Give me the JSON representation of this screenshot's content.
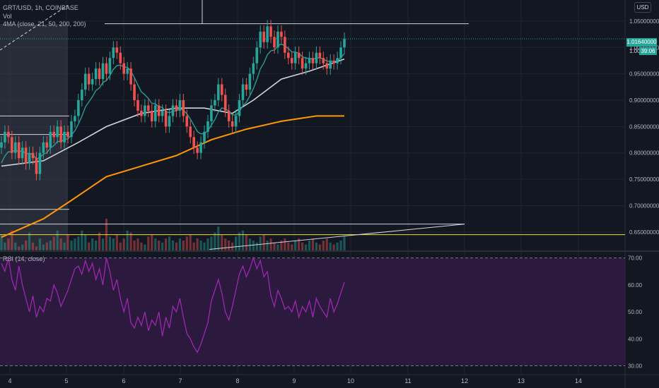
{
  "header": {
    "symbol_line": "GRT/USD, 1h, COINBASE",
    "vol_label": "Vol",
    "ma_label": "4MA (close, 21, 50, 200, 200)",
    "currency": "USD"
  },
  "rsi_panel": {
    "label": "RSI (14, close)",
    "upper_band": 70,
    "lower_band": 30
  },
  "last_price": {
    "price": "1.01640000",
    "countdown": "39:06",
    "partial_label": "1.00"
  },
  "colors": {
    "background": "#131722",
    "grid": "#1f2430",
    "up": "#26a69a",
    "down": "#ef5350",
    "ma21": "#26a69a",
    "ma50": "#d1d4dc",
    "ma200": "#ff9800",
    "rsi": "#9c27b0",
    "rsi_fill": "#2b1a3d",
    "yellow_line": "#fdd835",
    "trend_line": "#d1d4dc",
    "price_tag": "#26a69a"
  },
  "chart_data": [
    {
      "type": "candlestick",
      "title": "GRT/USD, 1h, COINBASE",
      "x_ticks": [
        "4",
        "5",
        "6",
        "7",
        "8",
        "9",
        "10",
        "11",
        "12",
        "13",
        "14"
      ],
      "y_ticks": [
        "1.05000000",
        "1.00000000",
        "0.95000000",
        "0.90000000",
        "0.85000000",
        "0.80000000",
        "0.75000000",
        "0.70000000",
        "0.65000000"
      ],
      "ylim": [
        0.615,
        1.09
      ],
      "last_price": 1.0164,
      "series_close": [
        0.82,
        0.84,
        0.83,
        0.8,
        0.82,
        0.79,
        0.81,
        0.78,
        0.8,
        0.79,
        0.76,
        0.8,
        0.82,
        0.81,
        0.84,
        0.83,
        0.85,
        0.82,
        0.84,
        0.83,
        0.86,
        0.87,
        0.9,
        0.92,
        0.95,
        0.93,
        0.94,
        0.96,
        0.94,
        0.97,
        0.95,
        0.98,
        1.0,
        0.99,
        0.97,
        0.95,
        0.96,
        0.93,
        0.9,
        0.88,
        0.87,
        0.89,
        0.88,
        0.86,
        0.89,
        0.87,
        0.88,
        0.85,
        0.87,
        0.89,
        0.88,
        0.9,
        0.87,
        0.85,
        0.83,
        0.81,
        0.8,
        0.82,
        0.84,
        0.86,
        0.89,
        0.9,
        0.93,
        0.91,
        0.88,
        0.86,
        0.85,
        0.87,
        0.9,
        0.93,
        0.92,
        0.95,
        0.97,
        1.0,
        1.03,
        1.01,
        1.04,
        1.02,
        1.0,
        1.03,
        1.02,
        0.99,
        0.98,
        0.97,
        0.99,
        0.98,
        0.96,
        0.97,
        0.98,
        0.97,
        0.99,
        0.98,
        0.97,
        0.96,
        0.975,
        0.97,
        0.98,
        1.0,
        1.0164
      ],
      "ma21_start": 0.77,
      "ma21_end": 0.985,
      "ma50_points": [
        [
          0,
          0.775
        ],
        [
          12,
          0.785
        ],
        [
          22,
          0.82
        ],
        [
          30,
          0.85
        ],
        [
          40,
          0.875
        ],
        [
          50,
          0.885
        ],
        [
          58,
          0.885
        ],
        [
          66,
          0.875
        ],
        [
          72,
          0.9
        ],
        [
          80,
          0.94
        ],
        [
          88,
          0.955
        ],
        [
          98,
          0.978
        ]
      ],
      "ma200_points": [
        [
          0,
          0.64
        ],
        [
          12,
          0.675
        ],
        [
          20,
          0.71
        ],
        [
          30,
          0.755
        ],
        [
          40,
          0.775
        ],
        [
          50,
          0.795
        ],
        [
          60,
          0.825
        ],
        [
          70,
          0.845
        ],
        [
          80,
          0.86
        ],
        [
          90,
          0.87
        ],
        [
          98,
          0.87
        ]
      ],
      "horizontal_lines": [
        {
          "price": 1.045,
          "label": "resistance"
        },
        {
          "price": 0.665,
          "label": "support"
        },
        {
          "price": 0.645,
          "label": "yellow"
        }
      ],
      "volume": [
        40,
        20,
        30,
        50,
        20,
        10,
        15,
        25,
        45,
        20,
        10,
        30,
        15,
        20,
        25,
        35,
        50,
        30,
        20,
        40,
        25,
        30,
        35,
        50,
        40,
        20,
        30,
        25,
        45,
        30,
        80,
        35,
        30,
        40,
        20,
        30,
        50,
        45,
        25,
        30,
        20,
        15,
        35,
        40,
        30,
        25,
        20,
        30,
        35,
        25,
        20,
        30,
        25,
        35,
        40,
        20,
        30,
        25,
        20,
        30,
        35,
        45,
        60,
        40,
        30,
        25,
        20,
        35,
        45,
        50,
        40,
        30,
        25,
        20,
        35,
        40,
        25,
        30,
        20,
        15,
        25,
        30,
        20,
        15,
        25,
        30,
        20,
        15,
        25,
        30,
        20,
        15,
        25,
        30,
        20,
        15,
        20,
        25,
        35
      ]
    },
    {
      "type": "line",
      "title": "RSI (14, close)",
      "y_ticks": [
        "70.00",
        "60.00",
        "50.00",
        "40.00",
        "30.00"
      ],
      "ylim": [
        27,
        72
      ],
      "values": [
        68,
        65,
        70,
        62,
        58,
        67,
        60,
        55,
        50,
        56,
        48,
        52,
        50,
        55,
        54,
        60,
        57,
        52,
        55,
        58,
        62,
        66,
        67,
        64,
        69,
        65,
        68,
        62,
        66,
        60,
        70,
        65,
        58,
        62,
        55,
        50,
        55,
        46,
        44,
        48,
        45,
        50,
        43,
        47,
        45,
        50,
        41,
        48,
        44,
        52,
        50,
        55,
        48,
        42,
        40,
        37,
        35,
        38,
        42,
        46,
        54,
        58,
        62,
        57,
        50,
        47,
        52,
        58,
        64,
        67,
        63,
        66,
        70,
        66,
        69,
        63,
        65,
        56,
        52,
        58,
        55,
        51,
        52,
        50,
        54,
        48,
        52,
        50,
        54,
        48,
        55,
        52,
        50,
        48,
        55,
        50,
        53,
        57,
        61
      ]
    }
  ]
}
